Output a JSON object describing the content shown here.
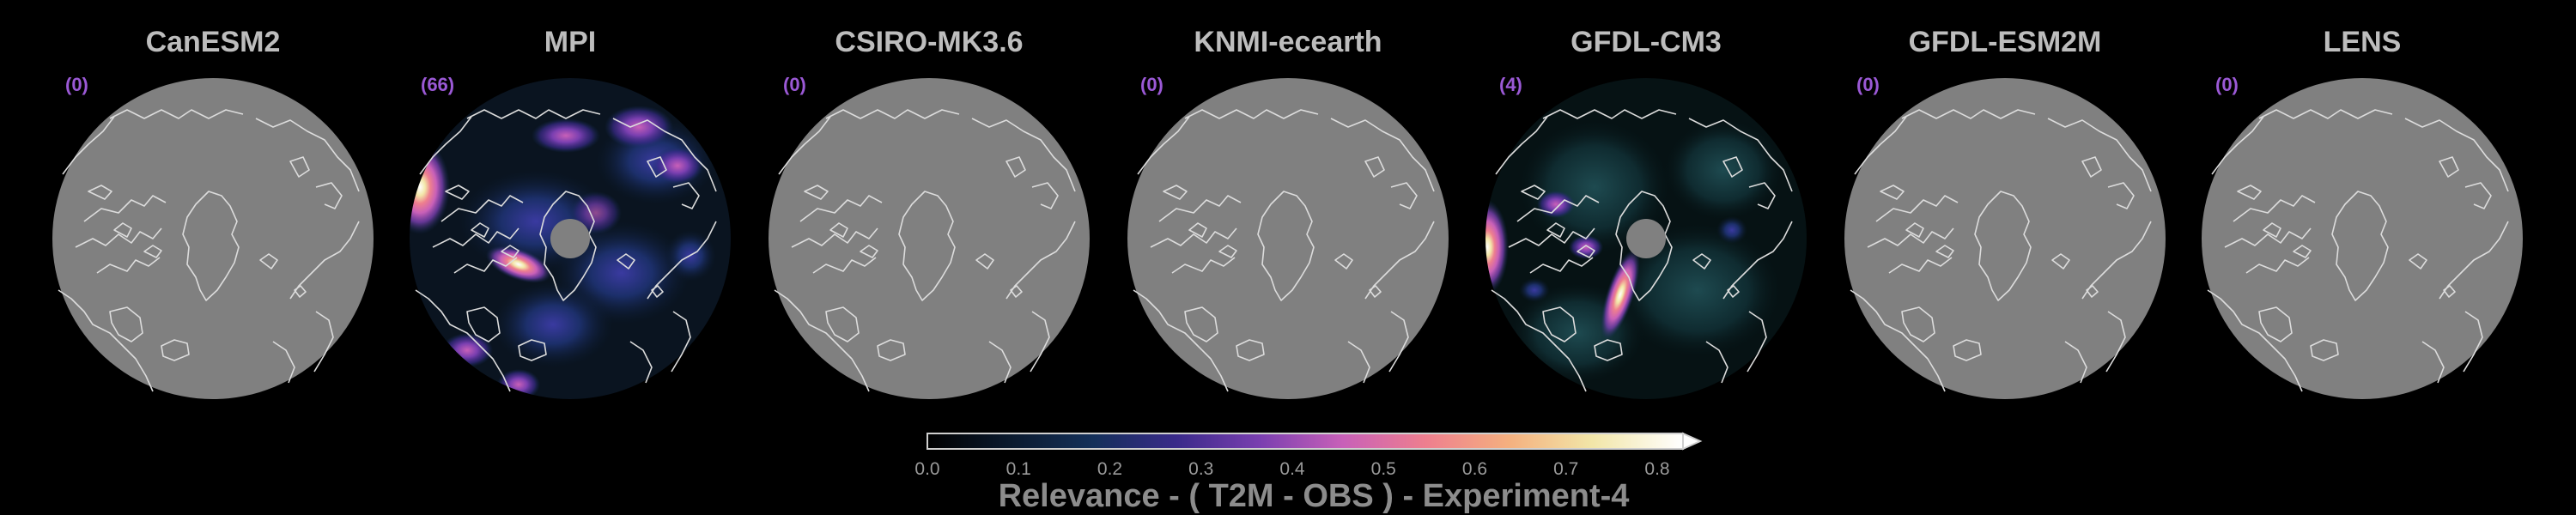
{
  "chart_data": {
    "type": "heatmap",
    "projection": "north-polar-stereographic",
    "colormap": [
      "#000000",
      "#0b1a2e",
      "#14305a",
      "#3a2a8a",
      "#7a3fb0",
      "#c860b8",
      "#ee7f8e",
      "#f4b07f",
      "#f2e6a8",
      "#ffffff"
    ],
    "colorbar": {
      "label": "Relevance - ( T2M - OBS ) - Experiment-4",
      "min": 0.0,
      "max": 0.8,
      "ticks": [
        "0.0",
        "0.1",
        "0.2",
        "0.3",
        "0.4",
        "0.5",
        "0.6",
        "0.7",
        "0.8"
      ],
      "extend": "max"
    },
    "panels": [
      {
        "name": "CanESM2",
        "count": "(0)",
        "has_relevance": false
      },
      {
        "name": "MPI",
        "count": "(66)",
        "has_relevance": true
      },
      {
        "name": "CSIRO-MK3.6",
        "count": "(0)",
        "has_relevance": false
      },
      {
        "name": "KNMI-ecearth",
        "count": "(0)",
        "has_relevance": false
      },
      {
        "name": "GFDL-CM3",
        "count": "(4)",
        "has_relevance": true
      },
      {
        "name": "GFDL-ESM2M",
        "count": "(0)",
        "has_relevance": false
      },
      {
        "name": "LENS",
        "count": "(0)",
        "has_relevance": false
      }
    ]
  },
  "colors": {
    "background": "#000000",
    "land_mask_gray": "#808080",
    "title_text": "#bdbdbd",
    "count_text": "#9b59d6",
    "coastline": "#dcdcdc"
  }
}
